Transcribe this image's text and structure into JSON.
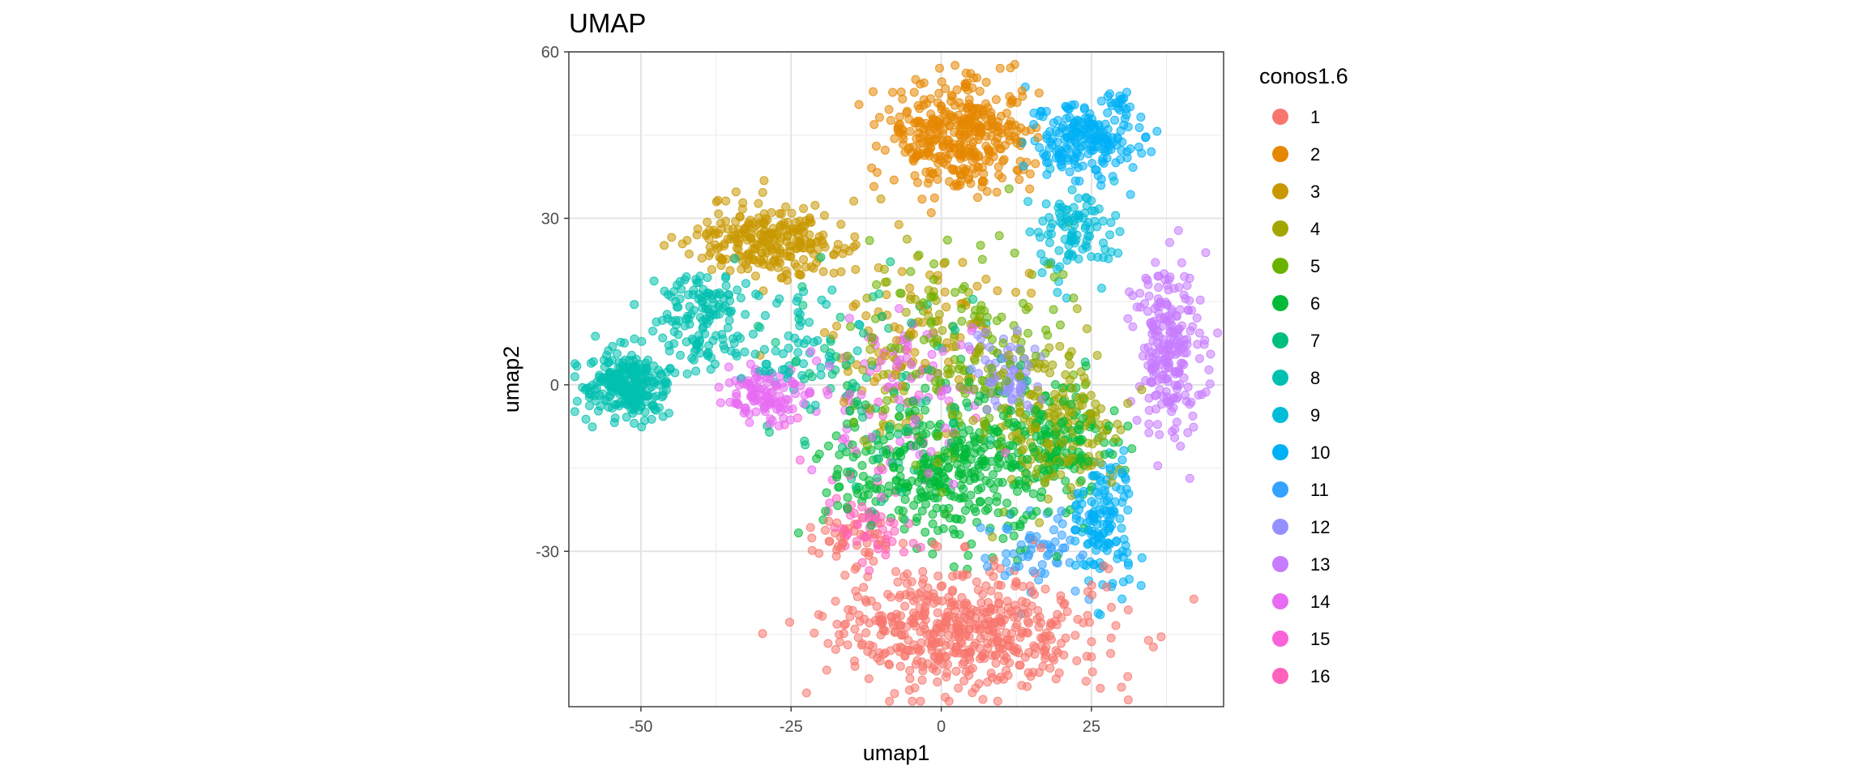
{
  "chart_data": {
    "type": "scatter",
    "title": "UMAP",
    "xlabel": "umap1",
    "ylabel": "umap2",
    "xlim": [
      -62,
      47
    ],
    "ylim": [
      -58,
      60
    ],
    "x_ticks": [
      -50,
      -25,
      0,
      25
    ],
    "x_tick_labels": [
      "-50",
      "-25",
      "0",
      "25"
    ],
    "y_ticks": [
      60,
      30,
      0,
      -30
    ],
    "y_tick_labels": [
      "60",
      "30",
      "0",
      "-30"
    ],
    "x_minor_ticks": [
      -37.5,
      -12.5,
      12.5,
      37.5
    ],
    "y_minor_ticks": [
      45,
      15,
      -15,
      -45
    ],
    "grid": true,
    "point_alpha": 0.55,
    "legend": {
      "title": "conos1.6",
      "position": "right",
      "entries": [
        "1",
        "2",
        "3",
        "4",
        "5",
        "6",
        "7",
        "8",
        "9",
        "10",
        "11",
        "12",
        "13",
        "14",
        "15",
        "16"
      ]
    },
    "series": [
      {
        "name": "1",
        "color": "#F8766D",
        "clusters": [
          {
            "cx": 4,
            "cy": -44,
            "rx": 20,
            "ry": 10,
            "n": 520
          },
          {
            "cx": -15,
            "cy": -28,
            "rx": 6,
            "ry": 4,
            "n": 40
          }
        ]
      },
      {
        "name": "2",
        "color": "#E58700",
        "clusters": [
          {
            "cx": 3,
            "cy": 45,
            "rx": 11,
            "ry": 9,
            "n": 380
          }
        ]
      },
      {
        "name": "3",
        "color": "#C99800",
        "clusters": [
          {
            "cx": -28,
            "cy": 26,
            "rx": 11,
            "ry": 6,
            "n": 260
          },
          {
            "cx": -5,
            "cy": 10,
            "rx": 14,
            "ry": 14,
            "n": 80
          }
        ]
      },
      {
        "name": "4",
        "color": "#A3A500",
        "clusters": [
          {
            "cx": 20,
            "cy": -8,
            "rx": 8,
            "ry": 12,
            "n": 170
          },
          {
            "cx": 0,
            "cy": 5,
            "rx": 15,
            "ry": 15,
            "n": 70
          }
        ]
      },
      {
        "name": "5",
        "color": "#6BB100",
        "clusters": [
          {
            "cx": 5,
            "cy": 5,
            "rx": 16,
            "ry": 20,
            "n": 170
          }
        ]
      },
      {
        "name": "6",
        "color": "#00BA38",
        "clusters": [
          {
            "cx": 2,
            "cy": -15,
            "rx": 18,
            "ry": 12,
            "n": 400
          },
          {
            "cx": 20,
            "cy": -10,
            "rx": 8,
            "ry": 10,
            "n": 100
          }
        ]
      },
      {
        "name": "7",
        "color": "#00BF7D",
        "clusters": [
          {
            "cx": -10,
            "cy": 0,
            "rx": 18,
            "ry": 18,
            "n": 100
          }
        ]
      },
      {
        "name": "8",
        "color": "#00C0AF",
        "clusters": [
          {
            "cx": -52,
            "cy": 0,
            "rx": 6,
            "ry": 6,
            "n": 260
          },
          {
            "cx": -40,
            "cy": 12,
            "rx": 6,
            "ry": 8,
            "n": 140
          },
          {
            "cx": -25,
            "cy": 5,
            "rx": 10,
            "ry": 10,
            "n": 60
          }
        ]
      },
      {
        "name": "9",
        "color": "#00BCD8",
        "clusters": [
          {
            "cx": 22,
            "cy": 28,
            "rx": 6,
            "ry": 8,
            "n": 100
          }
        ]
      },
      {
        "name": "10",
        "color": "#00B0F6",
        "clusters": [
          {
            "cx": 24,
            "cy": 44,
            "rx": 8,
            "ry": 6,
            "n": 200
          },
          {
            "cx": 27,
            "cy": -25,
            "rx": 5,
            "ry": 10,
            "n": 140
          },
          {
            "cx": 30,
            "cy": 51,
            "rx": 2,
            "ry": 2,
            "n": 15
          }
        ]
      },
      {
        "name": "11",
        "color": "#35A2FF",
        "clusters": [
          {
            "cx": 15,
            "cy": -30,
            "rx": 8,
            "ry": 8,
            "n": 60
          }
        ]
      },
      {
        "name": "12",
        "color": "#9590FF",
        "clusters": [
          {
            "cx": 11,
            "cy": 2,
            "rx": 5,
            "ry": 7,
            "n": 70
          }
        ]
      },
      {
        "name": "13",
        "color": "#C77CFF",
        "clusters": [
          {
            "cx": 38,
            "cy": 6,
            "rx": 5,
            "ry": 14,
            "n": 230
          }
        ]
      },
      {
        "name": "14",
        "color": "#E76BF3",
        "clusters": [
          {
            "cx": -30,
            "cy": -2,
            "rx": 6,
            "ry": 4,
            "n": 110
          },
          {
            "cx": -5,
            "cy": 0,
            "rx": 15,
            "ry": 15,
            "n": 70
          }
        ]
      },
      {
        "name": "15",
        "color": "#FA62DB",
        "clusters": [
          {
            "cx": -10,
            "cy": -5,
            "rx": 15,
            "ry": 15,
            "n": 40
          }
        ]
      },
      {
        "name": "16",
        "color": "#FF62BC",
        "clusters": [
          {
            "cx": -12,
            "cy": -25,
            "rx": 6,
            "ry": 6,
            "n": 50
          }
        ]
      }
    ]
  }
}
